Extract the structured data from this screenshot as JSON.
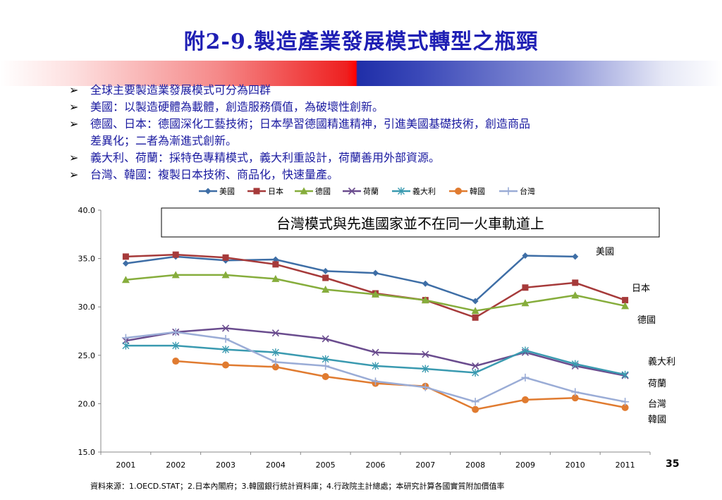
{
  "slide": {
    "title": "附2-9.製造產業發展模式轉型之瓶頸",
    "page_number": "35",
    "footnote": "資料來源：1.OECD.STAT；2.日本內閣府；3.韓國銀行統計資料庫；4.行政院主計總處；本研究計算各國實質附加價值率"
  },
  "bullets": [
    {
      "lines": [
        "全球主要製造業發展模式可分為四群"
      ]
    },
    {
      "lines": [
        "美國：以製造硬體為載體，創造服務價值，為破壞性創新。"
      ]
    },
    {
      "lines": [
        "德國、日本：德國深化工藝技術；日本學習德國精進精神，引進美國基礎技術，創造商品",
        "差異化；二者為漸進式創新。"
      ]
    },
    {
      "lines": [
        "義大利、荷蘭：採特色專精模式，義大利重設計，荷蘭善用外部資源。"
      ]
    },
    {
      "lines": [
        "台灣、韓國：複製日本技術、商品化，快速量產。"
      ]
    }
  ],
  "chart_data": {
    "type": "line",
    "annotation": "台灣模式與先進國家並不在同一火車軌道上",
    "legend_position": "top",
    "x": [
      "2001",
      "2002",
      "2003",
      "2004",
      "2005",
      "2006",
      "2007",
      "2008",
      "2009",
      "2010",
      "2011"
    ],
    "ylim": [
      15.0,
      40.0
    ],
    "yticks": [
      "15.0",
      "20.0",
      "25.0",
      "30.0",
      "35.0",
      "40.0"
    ],
    "grid": false,
    "series": [
      {
        "name": "美國",
        "marker": "diamond",
        "color": "#3e6ea6",
        "values": [
          34.5,
          35.2,
          34.8,
          34.9,
          33.7,
          33.5,
          32.4,
          30.6,
          35.3,
          35.2,
          null
        ],
        "end_label": "美國"
      },
      {
        "name": "日本",
        "marker": "square",
        "color": "#a63a3a",
        "values": [
          35.2,
          35.4,
          35.1,
          34.4,
          33.0,
          31.4,
          30.7,
          28.9,
          32.0,
          32.5,
          30.7
        ],
        "end_label": "日本"
      },
      {
        "name": "德國",
        "marker": "triangle",
        "color": "#86ad3c",
        "values": [
          32.8,
          33.3,
          33.3,
          32.9,
          31.8,
          31.3,
          30.7,
          29.6,
          30.4,
          31.2,
          30.1
        ],
        "end_label": "德國"
      },
      {
        "name": "荷蘭",
        "marker": "x",
        "color": "#6a4c8e",
        "values": [
          26.5,
          27.4,
          27.8,
          27.3,
          26.7,
          25.3,
          25.1,
          23.9,
          25.3,
          23.9,
          22.9
        ],
        "end_label": "荷蘭"
      },
      {
        "name": "義大利",
        "marker": "star",
        "color": "#3a9ab0",
        "values": [
          26.0,
          26.0,
          25.6,
          25.3,
          24.6,
          23.9,
          23.6,
          23.2,
          25.5,
          24.1,
          23.0
        ],
        "end_label": "義大利"
      },
      {
        "name": "韓國",
        "marker": "circle",
        "color": "#e07b30",
        "values": [
          null,
          24.4,
          24.0,
          23.8,
          22.8,
          22.1,
          21.8,
          19.4,
          20.4,
          20.6,
          19.6
        ],
        "end_label": "韓國"
      },
      {
        "name": "台灣",
        "marker": "plus",
        "color": "#9aacd6",
        "values": [
          26.8,
          27.4,
          26.7,
          24.3,
          23.9,
          22.3,
          21.7,
          20.2,
          22.7,
          21.2,
          20.2
        ],
        "end_label": "台灣"
      }
    ]
  }
}
